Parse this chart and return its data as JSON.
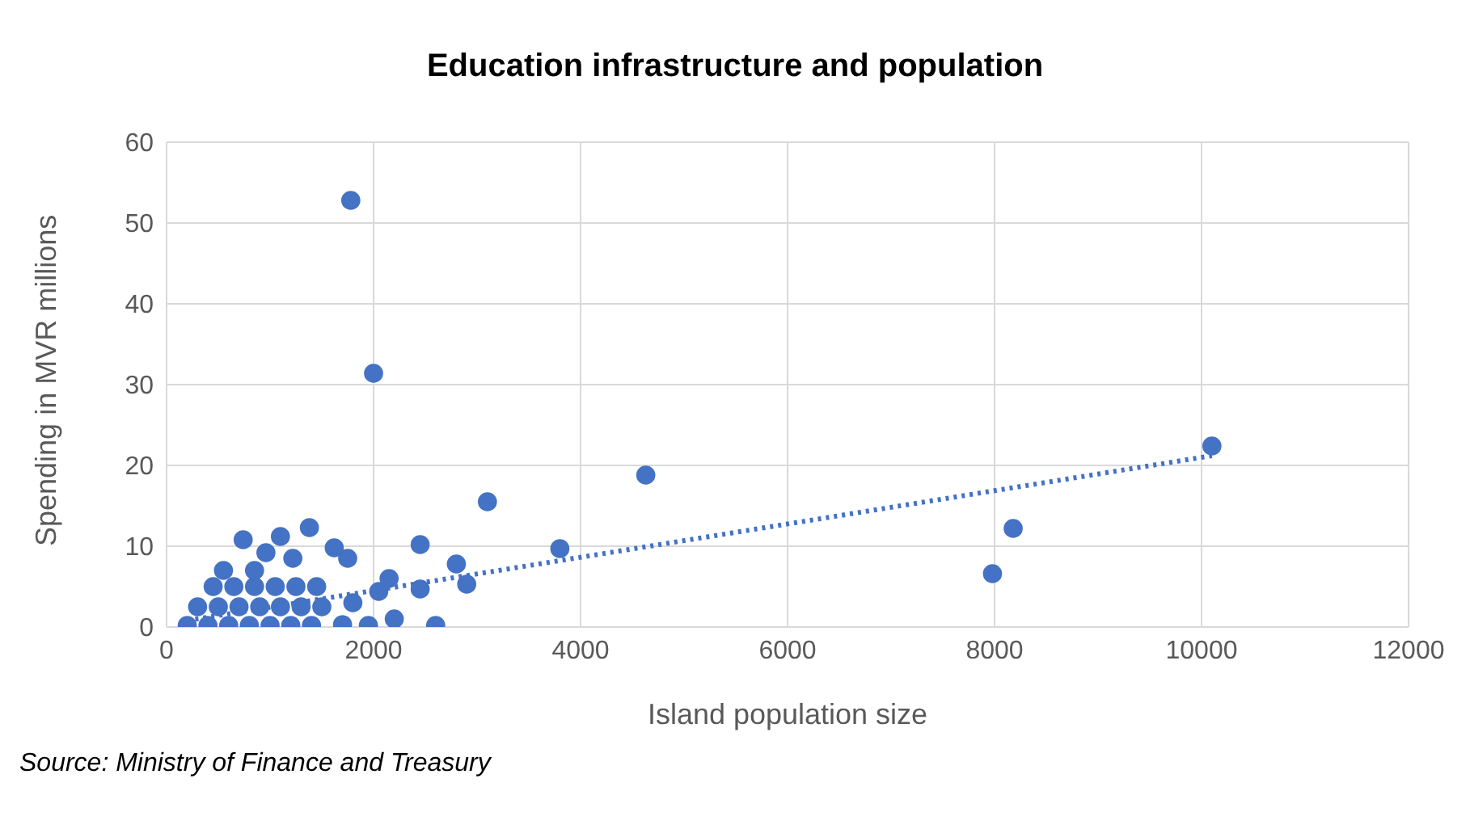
{
  "chart_data": {
    "type": "scatter",
    "title": "Education infrastructure and population",
    "xlabel": "Island population size",
    "ylabel": "Spending in MVR millions",
    "xlim": [
      0,
      12000
    ],
    "xticks": [
      0,
      2000,
      4000,
      6000,
      8000,
      10000,
      12000
    ],
    "ylim": [
      0,
      60
    ],
    "yticks": [
      0,
      10,
      20,
      30,
      40,
      50,
      60
    ],
    "grid": true,
    "annotations": [
      "Source: Ministry of Finance and Treasury"
    ],
    "series": [
      {
        "color": "#4472c4",
        "marker": "circle",
        "x": [
          1780,
          2000,
          4630,
          3100,
          10100,
          8180,
          7980,
          3800,
          2450,
          2800,
          2900,
          2450,
          2050,
          2150,
          2200,
          2600,
          1950,
          1800,
          1700,
          1750,
          1620,
          1380,
          1100,
          740,
          960,
          1220,
          200,
          400,
          600,
          800,
          1000,
          1200,
          1400,
          300,
          500,
          700,
          900,
          1100,
          1300,
          1500,
          450,
          650,
          850,
          1050,
          1250,
          1450,
          550,
          850
        ],
        "values": [
          52.8,
          31.4,
          18.8,
          15.5,
          22.4,
          12.2,
          6.6,
          9.7,
          10.2,
          7.8,
          5.3,
          4.7,
          4.4,
          6.0,
          1.0,
          0.2,
          0.2,
          3.0,
          0.3,
          8.5,
          9.8,
          12.3,
          11.2,
          10.8,
          9.2,
          8.5,
          0.2,
          0.2,
          0.2,
          0.2,
          0.2,
          0.2,
          0.2,
          2.5,
          2.5,
          2.5,
          2.5,
          2.5,
          2.5,
          2.5,
          5.0,
          5.0,
          5.0,
          5.0,
          5.0,
          5.0,
          7.0,
          7.0
        ]
      },
      {
        "type": "line",
        "line_style": "dotted",
        "marker": "none",
        "color": "#4472c4",
        "x": [
          200,
          10100
        ],
        "values": [
          0.8,
          21.2
        ]
      }
    ]
  }
}
